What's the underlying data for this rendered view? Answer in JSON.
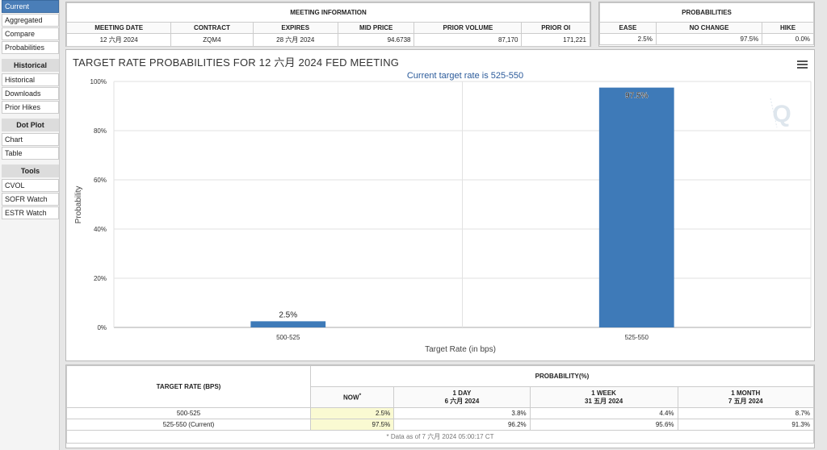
{
  "sidebar": {
    "items_top": [
      "Current",
      "Aggregated",
      "Compare",
      "Probabilities"
    ],
    "sections": [
      {
        "heading": "Historical",
        "items": [
          "Historical",
          "Downloads",
          "Prior Hikes"
        ]
      },
      {
        "heading": "Dot Plot",
        "items": [
          "Chart",
          "Table"
        ]
      },
      {
        "heading": "Tools",
        "items": [
          "CVOL",
          "SOFR Watch",
          "ESTR Watch"
        ]
      }
    ]
  },
  "meeting": {
    "title": "MEETING INFORMATION",
    "headers": [
      "MEETING DATE",
      "CONTRACT",
      "EXPIRES",
      "MID PRICE",
      "PRIOR VOLUME",
      "PRIOR OI"
    ],
    "row": [
      "12 六月 2024",
      "ZQM4",
      "28 六月 2024",
      "94.6738",
      "87,170",
      "171,221"
    ]
  },
  "probabilities": {
    "title": "PROBABILITIES",
    "headers": [
      "EASE",
      "NO CHANGE",
      "HIKE"
    ],
    "row": [
      "2.5%",
      "97.5%",
      "0.0%"
    ]
  },
  "chart": {
    "title": "TARGET RATE PROBABILITIES FOR 12 六月 2024 FED MEETING",
    "menu_icon": "hamburger-menu-icon",
    "watermark_icon": "q-logo-icon",
    "bar_color": "#3e7ab8"
  },
  "chart_data": {
    "type": "bar",
    "title": "TARGET RATE PROBABILITIES FOR 12 六月 2024 FED MEETING",
    "subtitle": "Current target rate is 525-550",
    "categories": [
      "500-525",
      "525-550"
    ],
    "values": [
      2.5,
      97.5
    ],
    "data_labels": [
      "2.5%",
      "97.5%"
    ],
    "xlabel": "Target Rate (in bps)",
    "ylabel": "Probability",
    "ylim": [
      0,
      100
    ],
    "yticks": [
      "0%",
      "20%",
      "40%",
      "60%",
      "80%",
      "100%"
    ],
    "grid": true
  },
  "bottom": {
    "rate_header": "TARGET RATE (BPS)",
    "prob_header": "PROBABILITY(%)",
    "cols": [
      {
        "line1": "NOW",
        "line2": ""
      },
      {
        "line1": "1 DAY",
        "line2": "6 六月 2024"
      },
      {
        "line1": "1 WEEK",
        "line2": "31 五月 2024"
      },
      {
        "line1": "1 MONTH",
        "line2": "7 五月 2024"
      }
    ],
    "rows": [
      {
        "rate": "500-525",
        "vals": [
          "2.5%",
          "3.8%",
          "4.4%",
          "8.7%"
        ]
      },
      {
        "rate": "525-550 (Current)",
        "vals": [
          "97.5%",
          "96.2%",
          "95.6%",
          "91.3%"
        ]
      }
    ],
    "footnote": "* Data as of 7 六月 2024 05:00:17 CT",
    "now_marker": "*"
  }
}
